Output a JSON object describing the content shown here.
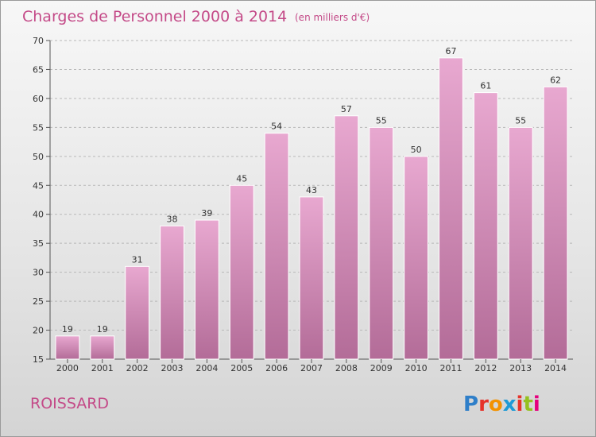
{
  "header": {
    "title": "Charges de Personnel 2000 à 2014",
    "unit_note": "(en milliers d'€)"
  },
  "commune": "ROISSARD",
  "logo": {
    "text": "Proxiti",
    "letter_colors": [
      "#2f7fc9",
      "#e6332a",
      "#f39200",
      "#1d9ad6",
      "#e6332a",
      "#95c11f",
      "#e6007e"
    ]
  },
  "colors": {
    "accent": "#c44a88",
    "bar_top": "#e8a8d0",
    "bar_bottom": "#b36c98",
    "bar_border": "#ffffff"
  },
  "chart_data": {
    "type": "bar",
    "title": "Charges de Personnel 2000 à 2014",
    "subtitle": "(en milliers d'€)",
    "categories": [
      "2000",
      "2001",
      "2002",
      "2003",
      "2004",
      "2005",
      "2006",
      "2007",
      "2008",
      "2009",
      "2010",
      "2011",
      "2012",
      "2013",
      "2014"
    ],
    "values": [
      19,
      19,
      31,
      38,
      39,
      45,
      54,
      43,
      57,
      55,
      50,
      67,
      61,
      55,
      62
    ],
    "data_labels": [
      "19",
      "19",
      "31",
      "38",
      "39",
      "45",
      "54",
      "43",
      "57",
      "55",
      "50",
      "67",
      "61",
      "55",
      "62"
    ],
    "ylim": [
      15,
      70
    ],
    "yticks": [
      15,
      20,
      25,
      30,
      35,
      40,
      45,
      50,
      55,
      60,
      65,
      70
    ],
    "ytick_labels": [
      "15",
      "20",
      "25",
      "30",
      "35",
      "40",
      "45",
      "50",
      "55",
      "60",
      "65",
      "70"
    ],
    "grid": "horizontal-dashed",
    "legend": "none"
  }
}
